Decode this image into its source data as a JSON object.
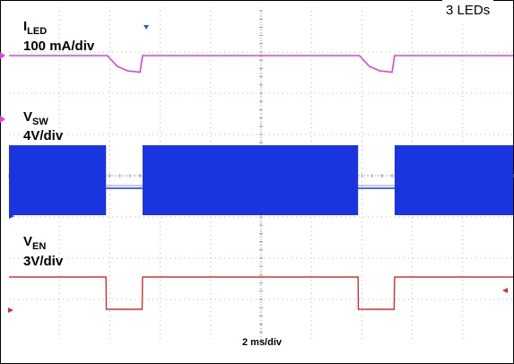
{
  "chart_data": {
    "type": "line",
    "title": "",
    "legend": {
      "text": "3 LEDs",
      "placement": "top-right"
    },
    "x_axis": {
      "label": "2 ms/div",
      "divisions": 10,
      "unit": "ms",
      "range": [
        0,
        20
      ]
    },
    "grid": true,
    "series": [
      {
        "name": "I_LED",
        "label_main": "I",
        "label_sub": "LED",
        "scale": "100 mA/div",
        "color": "#e040e0",
        "note": "",
        "x": [
          0,
          3.9,
          4.0,
          4.3,
          4.7,
          5.2,
          5.3,
          5.5,
          13.9,
          14.0,
          14.3,
          14.7,
          15.2,
          15.3,
          15.5,
          20
        ],
        "y_div": [
          0,
          0,
          -0.3,
          -1.2,
          -1.7,
          -1.85,
          0,
          0,
          0,
          -0.3,
          -1.2,
          -1.7,
          -1.85,
          0,
          0,
          0
        ]
      },
      {
        "name": "V_SW",
        "label_main": "V",
        "label_sub": "SW",
        "scale": "4V/div",
        "color": "#1a35e0",
        "switching_intervals_ms": [
          [
            0,
            3.85
          ],
          [
            5.3,
            13.85
          ],
          [
            15.3,
            20
          ]
        ],
        "idle_intervals_ms": [
          [
            3.85,
            5.3
          ],
          [
            13.85,
            15.3
          ]
        ]
      },
      {
        "name": "V_EN",
        "label_main": "V",
        "label_sub": "EN",
        "scale": "3V/div",
        "color": "#d83030",
        "x": [
          0,
          3.85,
          3.86,
          5.28,
          5.3,
          13.85,
          13.86,
          15.28,
          15.3,
          20
        ],
        "y_div": [
          0,
          0,
          -1,
          -1,
          0,
          0,
          -1,
          -1,
          0,
          0
        ]
      }
    ]
  }
}
